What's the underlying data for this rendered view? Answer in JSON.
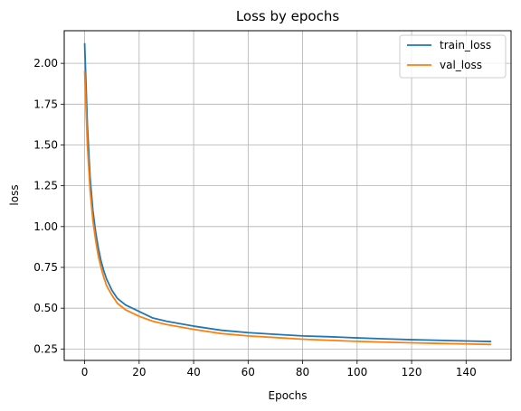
{
  "chart_data": {
    "type": "line",
    "title": "Loss by epochs",
    "xlabel": "Epochs",
    "ylabel": "loss",
    "xlim": [
      -7.5,
      156.5
    ],
    "ylim": [
      0.18,
      2.2
    ],
    "xticks": [
      0,
      20,
      40,
      60,
      80,
      100,
      120,
      140
    ],
    "yticks": [
      0.25,
      0.5,
      0.75,
      1.0,
      1.25,
      1.5,
      1.75,
      2.0
    ],
    "ytick_labels": [
      "0.25",
      "0.50",
      "0.75",
      "1.00",
      "1.25",
      "1.50",
      "1.75",
      "2.00"
    ],
    "grid": true,
    "legend_position": "top-right",
    "x": [
      0,
      1,
      2,
      3,
      4,
      5,
      6,
      7,
      8,
      10,
      12,
      15,
      20,
      25,
      30,
      40,
      50,
      60,
      70,
      80,
      90,
      100,
      110,
      120,
      130,
      140,
      149
    ],
    "series": [
      {
        "name": "train_loss",
        "color": "#1f77b4",
        "values": [
          2.12,
          1.62,
          1.3,
          1.1,
          0.97,
          0.87,
          0.79,
          0.73,
          0.68,
          0.61,
          0.56,
          0.52,
          0.48,
          0.44,
          0.42,
          0.39,
          0.365,
          0.35,
          0.34,
          0.33,
          0.325,
          0.318,
          0.312,
          0.307,
          0.303,
          0.299,
          0.296
        ]
      },
      {
        "name": "val_loss",
        "color": "#ff7f0e",
        "values": [
          1.95,
          1.5,
          1.22,
          1.04,
          0.92,
          0.82,
          0.75,
          0.69,
          0.64,
          0.58,
          0.53,
          0.49,
          0.45,
          0.42,
          0.4,
          0.37,
          0.345,
          0.33,
          0.32,
          0.31,
          0.303,
          0.297,
          0.292,
          0.288,
          0.284,
          0.281,
          0.278
        ]
      }
    ]
  }
}
